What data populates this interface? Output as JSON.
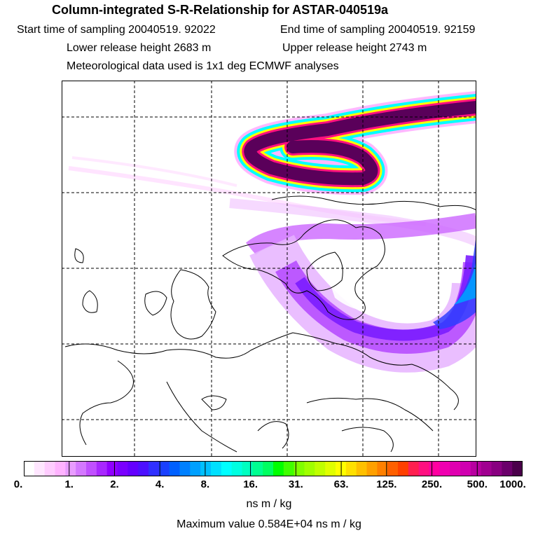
{
  "header": {
    "title": "Column-integrated S-R-Relationship for ASTAR-040519a",
    "start_time": "Start time of sampling 20040519. 92022",
    "end_time": "End time of sampling 20040519. 92159",
    "lower_height": "Lower release height 2683 m",
    "upper_height": "Upper release height 2743 m",
    "met_data": "Meteorological data used is 1x1 deg ECMWF analyses"
  },
  "colorbar": {
    "ticks": [
      "0.",
      "1.",
      "2.",
      "4.",
      "8.",
      "16.",
      "31.",
      "63.",
      "125.",
      "250.",
      "500.",
      "1000."
    ],
    "colors": [
      "#ffffff",
      "#ffe6ff",
      "#ffccff",
      "#ffb3ff",
      "#e89cff",
      "#d478ff",
      "#c050ff",
      "#a828ff",
      "#9000ff",
      "#7a00ff",
      "#6400ff",
      "#4c10ff",
      "#3030ff",
      "#1a40ff",
      "#0060ff",
      "#0080ff",
      "#00a0ff",
      "#00c0ff",
      "#00e0ff",
      "#00ffff",
      "#00ffe0",
      "#00ffc0",
      "#00ff90",
      "#00ff60",
      "#00ff00",
      "#40ff00",
      "#80ff00",
      "#a0ff00",
      "#c0ff00",
      "#e0ff00",
      "#ffff00",
      "#ffe000",
      "#ffc000",
      "#ffa000",
      "#ff8000",
      "#ff6000",
      "#ff4000",
      "#ff2050",
      "#ff1080",
      "#ff00a0",
      "#f000b0",
      "#e000b0",
      "#d000b0",
      "#b800a0",
      "#a00090",
      "#880080",
      "#6a006a",
      "#4a004a"
    ],
    "units": "ns m / kg",
    "maximum": "Maximum value  0.584E+04 ns m / kg"
  }
}
